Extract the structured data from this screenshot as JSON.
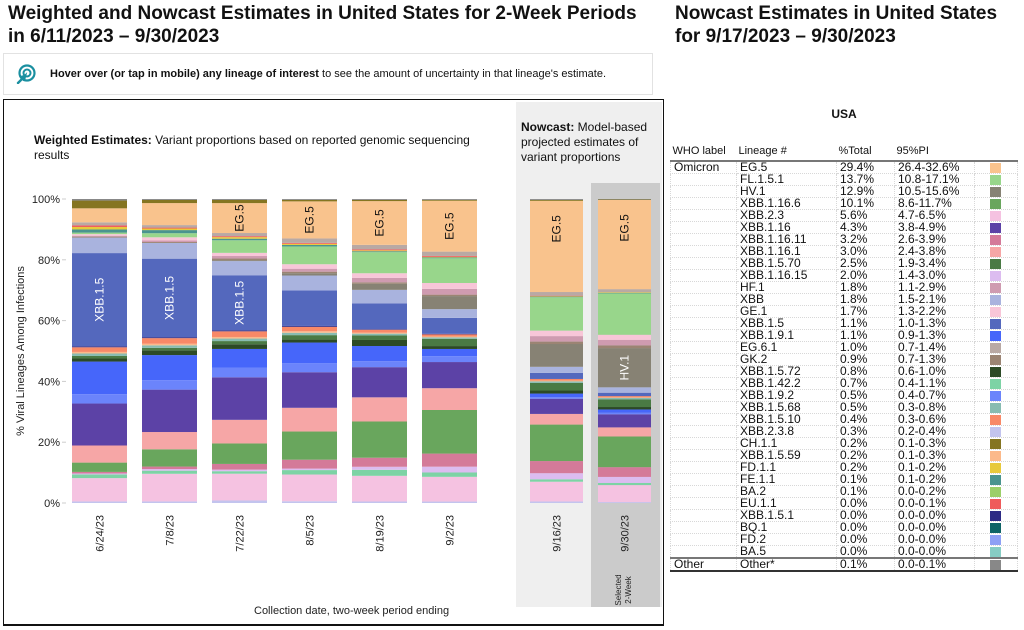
{
  "header": {
    "title": "Weighted and Nowcast Estimates in United States for 2-Week Periods in 6/11/2023 – 9/30/2023",
    "hover_bold": "Hover over (or tap in mobile) any lineage of interest",
    "hover_rest": " to see the amount of uncertainty in that lineage's estimate.",
    "hover_icon": "pointer-target-icon"
  },
  "weighted": {
    "caption_bold": "Weighted Estimates:",
    "caption_rest": " Variant proportions based on reported genomic sequencing results"
  },
  "nowcast": {
    "caption_bold": "Nowcast:",
    "caption_rest": " Model-based projected estimates of variant proportions",
    "selected_label_1": "Selected",
    "selected_label_2": "2-Week"
  },
  "colors": {
    "EG.5": "#f9c38d",
    "FL.1.5.1": "#98d68b",
    "HV.1": "#878274",
    "XBB.1.16.6": "#69a65d",
    "XBB.2.3": "#f5c2e1",
    "XBB.1.16": "#5c42a6",
    "XBB.1.16.11": "#d47a99",
    "XBB.1.16.1": "#f6a6a6",
    "XBB.1.5.70": "#4a7a44",
    "XBB.1.16.15": "#dcbcf0",
    "HF.1": "#cf9bb0",
    "XBB": "#a9b3de",
    "GE.1": "#f8c6d8",
    "XBB.1.5": "#5468bd",
    "XBB.1.9.1": "#4666fa",
    "EG.6.1": "#b9a9a4",
    "GK.2": "#9b8473",
    "XBB.1.5.72": "#2c4a26",
    "XBB.1.42.2": "#7dd3a5",
    "XBB.1.9.2": "#6b84fb",
    "XBB.1.5.68": "#88bcb1",
    "XBB.1.5.10": "#f88967",
    "XBB.2.3.8": "#c3c4ee",
    "CH.1.1": "#857521",
    "XBB.1.5.59": "#fcb98a",
    "FD.1.1": "#e7c93c",
    "FE.1.1": "#4a948f",
    "BA.2": "#9ccf68",
    "EU.1.1": "#ef5b5b",
    "XBB.1.5.1": "#2d2b85",
    "BQ.1": "#0e6466",
    "FD.2": "#8ea0f5",
    "BA.5": "#86cdc4",
    "Other": "#888888",
    "accent": "#1a8fa0"
  },
  "chart_data": {
    "type": "bar",
    "stacked": true,
    "title": "Weighted and Nowcast Estimates in United States for 2-Week Periods in 6/11/2023 – 9/30/2023",
    "xlabel": "Collection date, two-week period ending",
    "ylabel": "% Viral Lineages Among Infections",
    "ylim": [
      0,
      100
    ],
    "yticks": [
      "0%",
      "20%",
      "40%",
      "60%",
      "80%",
      "100%"
    ],
    "categories": [
      "6/24/23",
      "7/8/23",
      "7/22/23",
      "8/5/23",
      "8/19/23",
      "9/2/23",
      "9/16/23",
      "9/30/23"
    ],
    "category_kind": [
      "weighted",
      "weighted",
      "weighted",
      "weighted",
      "weighted",
      "weighted",
      "nowcast",
      "nowcast"
    ],
    "selected_category": "9/30/23",
    "bar_labels": [
      {
        "category": "6/24/23",
        "lineage": "XBB.1.5",
        "text": "XBB.1.5",
        "color": "light"
      },
      {
        "category": "7/8/23",
        "lineage": "XBB.1.5",
        "text": "XBB.1.5",
        "color": "light"
      },
      {
        "category": "7/22/23",
        "lineage": "XBB.1.5",
        "text": "XBB.1.5",
        "color": "light"
      },
      {
        "category": "7/22/23",
        "lineage": "EG.5",
        "text": "EG.5",
        "color": "dark"
      },
      {
        "category": "8/5/23",
        "lineage": "EG.5",
        "text": "EG.5",
        "color": "dark"
      },
      {
        "category": "8/19/23",
        "lineage": "EG.5",
        "text": "EG.5",
        "color": "dark"
      },
      {
        "category": "9/2/23",
        "lineage": "EG.5",
        "text": "EG.5",
        "color": "dark"
      },
      {
        "category": "9/16/23",
        "lineage": "EG.5",
        "text": "EG.5",
        "color": "dark"
      },
      {
        "category": "9/30/23",
        "lineage": "EG.5",
        "text": "EG.5",
        "color": "dark"
      },
      {
        "category": "9/30/23",
        "lineage": "HV.1",
        "text": "HV.1",
        "color": "light"
      }
    ],
    "stack_order": [
      "XBB.2.3.8",
      "XBB.2.3",
      "XBB.1.42.2",
      "XBB.1.16.15",
      "XBB.1.16.11",
      "XBB.1.16.6",
      "XBB.1.16.1",
      "XBB.1.16",
      "XBB.1.9.2",
      "XBB.1.9.1",
      "XBB.1.5.72",
      "XBB.1.5.70",
      "XBB.1.5.68",
      "XBB.1.5.59",
      "XBB.1.5.10",
      "XBB.1.5.1",
      "XBB.1.5",
      "XBB",
      "HV.1",
      "GK.2",
      "HF.1",
      "GE.1",
      "FL.1.5.1",
      "FE.1.1",
      "FD.1.1",
      "EU.1.1",
      "EG.6.1",
      "EG.5",
      "CH.1.1",
      "Other"
    ],
    "series": [
      {
        "name": "XBB.2.3.8",
        "values": [
          0.5,
          0.5,
          0.8,
          0.6,
          0.5,
          0.5,
          0.5,
          0.3
        ]
      },
      {
        "name": "XBB.2.3",
        "values": [
          7.5,
          8.8,
          8.5,
          9.0,
          8.5,
          8.5,
          6.5,
          5.6
        ]
      },
      {
        "name": "XBB.1.42.2",
        "values": [
          1.2,
          1.0,
          0.8,
          1.5,
          2.0,
          1.5,
          0.8,
          0.7
        ]
      },
      {
        "name": "XBB.1.16.15",
        "values": [
          0.3,
          0.5,
          0.5,
          0.5,
          1.0,
          2.0,
          2.0,
          2.0
        ]
      },
      {
        "name": "XBB.1.16.11",
        "values": [
          0.5,
          0.8,
          1.8,
          3.0,
          3.0,
          4.5,
          4.0,
          3.2
        ]
      },
      {
        "name": "XBB.1.16.6",
        "values": [
          3.0,
          5.5,
          6.5,
          9.5,
          12.0,
          15.0,
          12.0,
          10.1
        ]
      },
      {
        "name": "XBB.1.16.1",
        "values": [
          5.5,
          5.5,
          7.5,
          8.0,
          8.0,
          7.5,
          3.5,
          3.0
        ]
      },
      {
        "name": "XBB.1.16",
        "values": [
          13.5,
          13.5,
          13.5,
          12.0,
          10.0,
          9.0,
          5.0,
          4.3
        ]
      },
      {
        "name": "XBB.1.9.2",
        "values": [
          3.0,
          3.0,
          3.0,
          3.0,
          2.0,
          2.0,
          0.5,
          0.5
        ]
      },
      {
        "name": "XBB.1.9.1",
        "values": [
          10.5,
          8.0,
          6.0,
          7.0,
          5.0,
          2.5,
          1.2,
          1.1
        ]
      },
      {
        "name": "XBB.1.5.72",
        "values": [
          1.0,
          1.5,
          1.5,
          1.0,
          2.0,
          1.0,
          1.0,
          0.8
        ]
      },
      {
        "name": "XBB.1.5.70",
        "values": [
          0.8,
          0.8,
          1.0,
          1.5,
          1.5,
          2.5,
          2.5,
          2.5
        ]
      },
      {
        "name": "XBB.1.5.68",
        "values": [
          0.8,
          0.8,
          0.8,
          0.8,
          0.6,
          0.5,
          0.5,
          0.5
        ]
      },
      {
        "name": "XBB.1.5.59",
        "values": [
          0.5,
          0.5,
          0.5,
          0.5,
          0.3,
          0.3,
          0.3,
          0.2
        ]
      },
      {
        "name": "XBB.1.5.10",
        "values": [
          1.5,
          1.8,
          1.8,
          1.5,
          1.0,
          0.8,
          0.5,
          0.4
        ]
      },
      {
        "name": "XBB.1.5.1",
        "values": [
          0.3,
          0.3,
          0.3,
          0.3,
          0.2,
          0.1,
          0.0,
          0.0
        ]
      },
      {
        "name": "XBB.1.5",
        "values": [
          30.0,
          25.0,
          17.5,
          12.0,
          8.5,
          5.5,
          2.0,
          1.1
        ]
      },
      {
        "name": "XBB",
        "values": [
          5.0,
          5.0,
          4.5,
          5.0,
          4.5,
          3.0,
          2.0,
          1.8
        ]
      },
      {
        "name": "HV.1",
        "values": [
          0.0,
          0.0,
          0.3,
          0.8,
          2.0,
          4.5,
          7.5,
          12.9
        ]
      },
      {
        "name": "GK.2",
        "values": [
          0.3,
          0.3,
          0.5,
          0.5,
          0.5,
          0.5,
          0.8,
          0.9
        ]
      },
      {
        "name": "HF.1",
        "values": [
          0.3,
          0.5,
          0.8,
          1.0,
          1.5,
          2.0,
          1.8,
          1.8
        ]
      },
      {
        "name": "GE.1",
        "values": [
          0.5,
          1.0,
          1.0,
          1.5,
          1.5,
          2.0,
          1.8,
          1.7
        ]
      },
      {
        "name": "FL.1.5.1",
        "values": [
          0.5,
          1.3,
          4.0,
          6.0,
          7.0,
          8.5,
          11.0,
          13.7
        ]
      },
      {
        "name": "FE.1.1",
        "values": [
          1.0,
          1.0,
          0.5,
          0.5,
          0.3,
          0.3,
          0.2,
          0.1
        ]
      },
      {
        "name": "FD.1.1",
        "values": [
          0.8,
          0.5,
          0.5,
          0.4,
          0.3,
          0.2,
          0.2,
          0.2
        ]
      },
      {
        "name": "EU.1.1",
        "values": [
          0.5,
          0.3,
          0.3,
          0.3,
          0.3,
          0.3,
          0.1,
          0.0
        ]
      },
      {
        "name": "EG.6.1",
        "values": [
          1.0,
          0.8,
          1.0,
          1.5,
          1.5,
          1.5,
          1.2,
          1.0
        ]
      },
      {
        "name": "EG.5",
        "values": [
          4.5,
          7.0,
          9.5,
          12.5,
          14.5,
          17.5,
          30.0,
          29.4
        ]
      },
      {
        "name": "CH.1.1",
        "values": [
          2.5,
          1.0,
          1.0,
          0.5,
          0.4,
          0.3,
          0.3,
          0.2
        ]
      },
      {
        "name": "Other",
        "values": [
          0.5,
          0.3,
          0.3,
          0.3,
          0.3,
          0.3,
          0.3,
          0.1
        ]
      }
    ]
  },
  "table": {
    "title": "Nowcast Estimates in United States for 9/17/2023 – 9/30/2023",
    "region": "USA",
    "headers": [
      "WHO label",
      "Lineage #",
      "%Total",
      "95%PI"
    ],
    "rows": [
      {
        "who": "Omicron",
        "lineage": "EG.5",
        "total": "29.4%",
        "pi": "26.4-32.6%"
      },
      {
        "who": "",
        "lineage": "FL.1.5.1",
        "total": "13.7%",
        "pi": "10.8-17.1%"
      },
      {
        "who": "",
        "lineage": "HV.1",
        "total": "12.9%",
        "pi": "10.5-15.6%"
      },
      {
        "who": "",
        "lineage": "XBB.1.16.6",
        "total": "10.1%",
        "pi": "8.6-11.7%"
      },
      {
        "who": "",
        "lineage": "XBB.2.3",
        "total": "5.6%",
        "pi": "4.7-6.5%"
      },
      {
        "who": "",
        "lineage": "XBB.1.16",
        "total": "4.3%",
        "pi": "3.8-4.9%"
      },
      {
        "who": "",
        "lineage": "XBB.1.16.11",
        "total": "3.2%",
        "pi": "2.6-3.9%"
      },
      {
        "who": "",
        "lineage": "XBB.1.16.1",
        "total": "3.0%",
        "pi": "2.4-3.8%"
      },
      {
        "who": "",
        "lineage": "XBB.1.5.70",
        "total": "2.5%",
        "pi": "1.9-3.4%"
      },
      {
        "who": "",
        "lineage": "XBB.1.16.15",
        "total": "2.0%",
        "pi": "1.4-3.0%"
      },
      {
        "who": "",
        "lineage": "HF.1",
        "total": "1.8%",
        "pi": "1.1-2.9%"
      },
      {
        "who": "",
        "lineage": "XBB",
        "total": "1.8%",
        "pi": "1.5-2.1%"
      },
      {
        "who": "",
        "lineage": "GE.1",
        "total": "1.7%",
        "pi": "1.3-2.2%"
      },
      {
        "who": "",
        "lineage": "XBB.1.5",
        "total": "1.1%",
        "pi": "1.0-1.3%"
      },
      {
        "who": "",
        "lineage": "XBB.1.9.1",
        "total": "1.1%",
        "pi": "0.9-1.3%"
      },
      {
        "who": "",
        "lineage": "EG.6.1",
        "total": "1.0%",
        "pi": "0.7-1.4%"
      },
      {
        "who": "",
        "lineage": "GK.2",
        "total": "0.9%",
        "pi": "0.7-1.3%"
      },
      {
        "who": "",
        "lineage": "XBB.1.5.72",
        "total": "0.8%",
        "pi": "0.6-1.0%"
      },
      {
        "who": "",
        "lineage": "XBB.1.42.2",
        "total": "0.7%",
        "pi": "0.4-1.1%"
      },
      {
        "who": "",
        "lineage": "XBB.1.9.2",
        "total": "0.5%",
        "pi": "0.4-0.7%"
      },
      {
        "who": "",
        "lineage": "XBB.1.5.68",
        "total": "0.5%",
        "pi": "0.3-0.8%"
      },
      {
        "who": "",
        "lineage": "XBB.1.5.10",
        "total": "0.4%",
        "pi": "0.3-0.6%"
      },
      {
        "who": "",
        "lineage": "XBB.2.3.8",
        "total": "0.3%",
        "pi": "0.2-0.4%"
      },
      {
        "who": "",
        "lineage": "CH.1.1",
        "total": "0.2%",
        "pi": "0.1-0.3%"
      },
      {
        "who": "",
        "lineage": "XBB.1.5.59",
        "total": "0.2%",
        "pi": "0.1-0.3%"
      },
      {
        "who": "",
        "lineage": "FD.1.1",
        "total": "0.2%",
        "pi": "0.1-0.2%"
      },
      {
        "who": "",
        "lineage": "FE.1.1",
        "total": "0.1%",
        "pi": "0.1-0.2%"
      },
      {
        "who": "",
        "lineage": "BA.2",
        "total": "0.1%",
        "pi": "0.0-0.2%"
      },
      {
        "who": "",
        "lineage": "EU.1.1",
        "total": "0.0%",
        "pi": "0.0-0.1%"
      },
      {
        "who": "",
        "lineage": "XBB.1.5.1",
        "total": "0.0%",
        "pi": "0.0-0.0%"
      },
      {
        "who": "",
        "lineage": "BQ.1",
        "total": "0.0%",
        "pi": "0.0-0.0%"
      },
      {
        "who": "",
        "lineage": "FD.2",
        "total": "0.0%",
        "pi": "0.0-0.0%"
      },
      {
        "who": "",
        "lineage": "BA.5",
        "total": "0.0%",
        "pi": "0.0-0.0%"
      },
      {
        "who": "Other",
        "lineage": "Other*",
        "total": "0.1%",
        "pi": "0.0-0.1%"
      }
    ]
  }
}
